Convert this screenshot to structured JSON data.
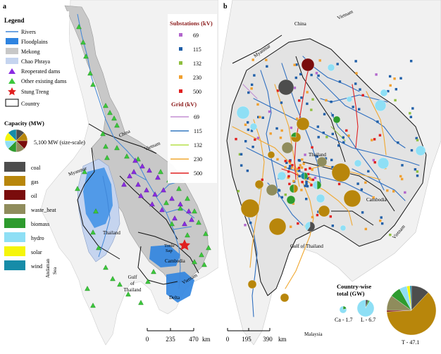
{
  "panel_a": {
    "label": "a",
    "legend_title": "Legend",
    "legend_items": [
      {
        "label": "Rivers"
      },
      {
        "label": "Floodplains"
      },
      {
        "label": "Mekong"
      },
      {
        "label": "Chao Phraya"
      },
      {
        "label": "Reoperated dams"
      },
      {
        "label": "Other existing dams"
      },
      {
        "label": "Stung Treng"
      },
      {
        "label": "Country"
      }
    ],
    "capacity_title": "Capacity (MW)",
    "capacity_scale": "5,100 MW (size-scale)",
    "fuel_types": [
      {
        "label": "coal",
        "color": "#4d4d4d"
      },
      {
        "label": "gas",
        "color": "#b8860b"
      },
      {
        "label": "oil",
        "color": "#7a0c0c"
      },
      {
        "label": "waste_heat",
        "color": "#8f8c5c"
      },
      {
        "label": "biomass",
        "color": "#2e9b2e"
      },
      {
        "label": "hydro",
        "color": "#8edff5"
      },
      {
        "label": "solar",
        "color": "#f5f50a"
      },
      {
        "label": "wind",
        "color": "#168ca8"
      }
    ],
    "substations_title": "Substations (kV)",
    "substations": [
      {
        "label": "69",
        "color": "#b266cc"
      },
      {
        "label": "115",
        "color": "#1f5fa8"
      },
      {
        "label": "132",
        "color": "#8fbf3f"
      },
      {
        "label": "230",
        "color": "#f0a030"
      },
      {
        "label": "500",
        "color": "#e02020"
      }
    ],
    "grid_title": "Grid (kV)",
    "grid": [
      {
        "label": "69",
        "color": "#c38fd4"
      },
      {
        "label": "115",
        "color": "#3478c0"
      },
      {
        "label": "132",
        "color": "#b5e04a"
      },
      {
        "label": "230",
        "color": "#f0a830"
      },
      {
        "label": "500",
        "color": "#e02020"
      }
    ],
    "places": {
      "china": "China",
      "vietnam": "Vietnam",
      "myanmar": "Myanmar",
      "thailand": "Thailand",
      "cambodia": "Cambodia",
      "tonle_sap_1": "Tonle",
      "tonle_sap_2": "Sap",
      "andaman_1": "Andaman",
      "andaman_2": "Sea",
      "gulf_1": "Gulf",
      "gulf_2": "of",
      "gulf_3": "Thailand",
      "delta": "Delta",
      "vietnam_south": "Vietnam"
    },
    "scale": {
      "t0": "0",
      "t1": "235",
      "t2": "470",
      "unit": "km"
    }
  },
  "panel_b": {
    "label": "b",
    "places": {
      "china": "China",
      "vietnam": "Vietnam",
      "myanmar": "Myanmar",
      "thailand": "Thailand",
      "cambodia": "Cambodia",
      "gulf": "Gulf of Thailand",
      "vietnam_south": "Vietnam",
      "malaysia": "Malaysia"
    },
    "country_title_1": "Country-wise",
    "country_title_2": "total (GW)",
    "country_totals": [
      {
        "label": "Ca - 1.7",
        "value": 1.7
      },
      {
        "label": "L - 6.7",
        "value": 6.7
      },
      {
        "label": "T - 47.1",
        "value": 47.1
      }
    ],
    "scale": {
      "t0": "0",
      "t1": "195",
      "t2": "390",
      "unit": "km"
    }
  }
}
